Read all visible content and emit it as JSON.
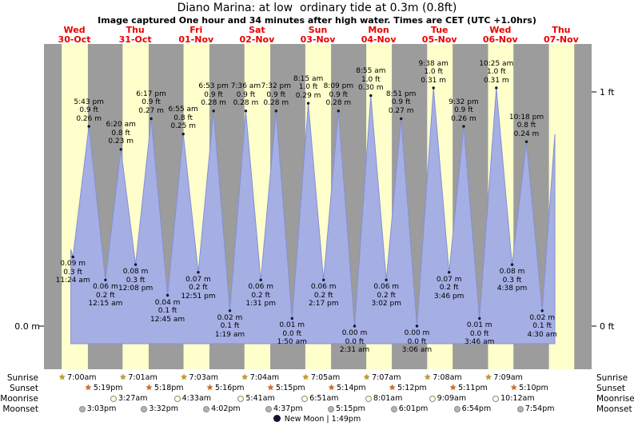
{
  "title": "Diano Marina: at low  ordinary tide at 0.3m (0.8ft)",
  "subtitle": "Image captured One hour and 34 minutes after high water. Times are CET (UTC +1.0hrs)",
  "axis": {
    "left_zero": "0.0 m",
    "right_one": "1 ft",
    "right_zero": "0 ft"
  },
  "days": [
    {
      "name": "Wed",
      "date": "30-Oct"
    },
    {
      "name": "Thu",
      "date": "31-Oct"
    },
    {
      "name": "Fri",
      "date": "01-Nov"
    },
    {
      "name": "Sat",
      "date": "02-Nov"
    },
    {
      "name": "Sun",
      "date": "03-Nov"
    },
    {
      "name": "Mon",
      "date": "04-Nov"
    },
    {
      "name": "Tue",
      "date": "05-Nov"
    },
    {
      "name": "Wed",
      "date": "06-Nov"
    },
    {
      "name": "Thu",
      "date": "07-Nov"
    }
  ],
  "chart_data": {
    "type": "area",
    "title": "Tide height curve",
    "ylabel_left": "meters",
    "ylabel_right": "feet",
    "ylim_ft": [
      0,
      1.2
    ],
    "grid": false,
    "events": [
      {
        "kind": "low",
        "day": 0,
        "time": "11:24 am",
        "ft": "0.3 ft",
        "m": "0.09 m"
      },
      {
        "kind": "high",
        "day": 0,
        "time": "5:43 pm",
        "ft": "0.9 ft",
        "m": "0.26 m"
      },
      {
        "kind": "low",
        "day": 1,
        "time": "12:15 am",
        "ft": "0.2 ft",
        "m": "0.06 m"
      },
      {
        "kind": "high",
        "day": 1,
        "time": "6:20 am",
        "ft": "0.8 ft",
        "m": "0.23 m"
      },
      {
        "kind": "low",
        "day": 1,
        "time": "12:08 pm",
        "ft": "0.3 ft",
        "m": "0.08 m"
      },
      {
        "kind": "high",
        "day": 1,
        "time": "6:17 pm",
        "ft": "0.9 ft",
        "m": "0.27 m"
      },
      {
        "kind": "low",
        "day": 2,
        "time": "12:45 am",
        "ft": "0.1 ft",
        "m": "0.04 m"
      },
      {
        "kind": "high",
        "day": 2,
        "time": "6:55 am",
        "ft": "0.8 ft",
        "m": "0.25 m"
      },
      {
        "kind": "low",
        "day": 2,
        "time": "12:51 pm",
        "ft": "0.2 ft",
        "m": "0.07 m"
      },
      {
        "kind": "high",
        "day": 2,
        "time": "6:53 pm",
        "ft": "0.9 ft",
        "m": "0.28 m"
      },
      {
        "kind": "low",
        "day": 3,
        "time": "1:19 am",
        "ft": "0.1 ft",
        "m": "0.02 m"
      },
      {
        "kind": "high",
        "day": 3,
        "time": "7:36 am",
        "ft": "0.9 ft",
        "m": "0.28 m"
      },
      {
        "kind": "low",
        "day": 3,
        "time": "1:31 pm",
        "ft": "0.2 ft",
        "m": "0.06 m"
      },
      {
        "kind": "high",
        "day": 3,
        "time": "7:32 pm",
        "ft": "0.9 ft",
        "m": "0.28 m"
      },
      {
        "kind": "low",
        "day": 4,
        "time": "1:50 am",
        "ft": "0.0 ft",
        "m": "0.01 m"
      },
      {
        "kind": "high",
        "day": 4,
        "time": "8:15 am",
        "ft": "1.0 ft",
        "m": "0.29 m"
      },
      {
        "kind": "low",
        "day": 4,
        "time": "2:17 pm",
        "ft": "0.2 ft",
        "m": "0.06 m"
      },
      {
        "kind": "high",
        "day": 4,
        "time": "8:09 pm",
        "ft": "0.9 ft",
        "m": "0.28 m"
      },
      {
        "kind": "low",
        "day": 5,
        "time": "2:31 am",
        "ft": "0.0 ft",
        "m": "0.00 m"
      },
      {
        "kind": "high",
        "day": 5,
        "time": "8:55 am",
        "ft": "1.0 ft",
        "m": "0.30 m"
      },
      {
        "kind": "low",
        "day": 5,
        "time": "3:02 pm",
        "ft": "0.2 ft",
        "m": "0.06 m"
      },
      {
        "kind": "high",
        "day": 5,
        "time": "8:51 pm",
        "ft": "0.9 ft",
        "m": "0.27 m"
      },
      {
        "kind": "low",
        "day": 6,
        "time": "3:06 am",
        "ft": "0.0 ft",
        "m": "0.00 m"
      },
      {
        "kind": "high",
        "day": 6,
        "time": "9:38 am",
        "ft": "1.0 ft",
        "m": "0.31 m"
      },
      {
        "kind": "low",
        "day": 6,
        "time": "3:46 pm",
        "ft": "0.2 ft",
        "m": "0.07 m"
      },
      {
        "kind": "high",
        "day": 6,
        "time": "9:32 pm",
        "ft": "0.9 ft",
        "m": "0.26 m"
      },
      {
        "kind": "low",
        "day": 7,
        "time": "3:46 am",
        "ft": "0.0 ft",
        "m": "0.01 m"
      },
      {
        "kind": "high",
        "day": 7,
        "time": "10:25 am",
        "ft": "1.0 ft",
        "m": "0.31 m"
      },
      {
        "kind": "low",
        "day": 7,
        "time": "4:38 pm",
        "ft": "0.3 ft",
        "m": "0.08 m"
      },
      {
        "kind": "high",
        "day": 7,
        "time": "10:18 pm",
        "ft": "0.8 ft",
        "m": "0.24 m"
      },
      {
        "kind": "low",
        "day": 8,
        "time": "4:30 am",
        "ft": "0.1 ft",
        "m": "0.02 m"
      }
    ],
    "curve": {
      "start_offset_hours": -0.8,
      "start_m": 0.1,
      "end_offset_hours": 5.0,
      "end_m": 0.25
    }
  },
  "almanac": {
    "rows": [
      {
        "id": "sunrise",
        "label": "Sunrise",
        "icon": "sunrise-star",
        "entries": [
          {
            "day": 0,
            "time": "7:00am"
          },
          {
            "day": 1,
            "time": "7:01am"
          },
          {
            "day": 2,
            "time": "7:03am"
          },
          {
            "day": 3,
            "time": "7:04am"
          },
          {
            "day": 4,
            "time": "7:05am"
          },
          {
            "day": 5,
            "time": "7:07am"
          },
          {
            "day": 6,
            "time": "7:08am"
          },
          {
            "day": 7,
            "time": "7:09am"
          }
        ]
      },
      {
        "id": "sunset",
        "label": "Sunset",
        "icon": "sunset-star",
        "entries": [
          {
            "day": 0,
            "time": "5:19pm"
          },
          {
            "day": 1,
            "time": "5:18pm"
          },
          {
            "day": 2,
            "time": "5:16pm"
          },
          {
            "day": 3,
            "time": "5:15pm"
          },
          {
            "day": 4,
            "time": "5:14pm"
          },
          {
            "day": 5,
            "time": "5:12pm"
          },
          {
            "day": 6,
            "time": "5:11pm"
          },
          {
            "day": 7,
            "time": "5:10pm"
          }
        ]
      },
      {
        "id": "moonrise",
        "label": "Moonrise",
        "icon": "moonrise-circle",
        "entries": [
          {
            "day": 1,
            "time": "3:27am"
          },
          {
            "day": 2,
            "time": "4:33am"
          },
          {
            "day": 3,
            "time": "5:41am"
          },
          {
            "day": 4,
            "time": "6:51am"
          },
          {
            "day": 5,
            "time": "8:01am"
          },
          {
            "day": 6,
            "time": "9:09am"
          },
          {
            "day": 7,
            "time": "10:12am"
          }
        ]
      },
      {
        "id": "moonset",
        "label": "Moonset",
        "icon": "moonset-circle",
        "entries": [
          {
            "day": 0,
            "time": "3:03pm"
          },
          {
            "day": 1,
            "time": "3:32pm"
          },
          {
            "day": 2,
            "time": "4:02pm"
          },
          {
            "day": 3,
            "time": "4:37pm"
          },
          {
            "day": 4,
            "time": "5:15pm"
          },
          {
            "day": 5,
            "time": "6:01pm"
          },
          {
            "day": 6,
            "time": "6:54pm"
          },
          {
            "day": 7,
            "time": "7:54pm"
          }
        ]
      }
    ],
    "moon_phase": "New Moon | 1:49pm"
  },
  "colors": {
    "day_band": "#ffffcc",
    "night_band": "#9c9c9c",
    "tide_fill": "#a5afe4",
    "tide_stroke": "#8490d4",
    "marker": "#151530",
    "day_label": "#e80000",
    "tick": "#000000",
    "sunrise_icon": "#c9991f",
    "sunset_icon": "#e2641e",
    "moonrise_icon": "#ffffd6",
    "moonset_icon": "#b4b4b4",
    "new_moon_icon": "#141432"
  }
}
